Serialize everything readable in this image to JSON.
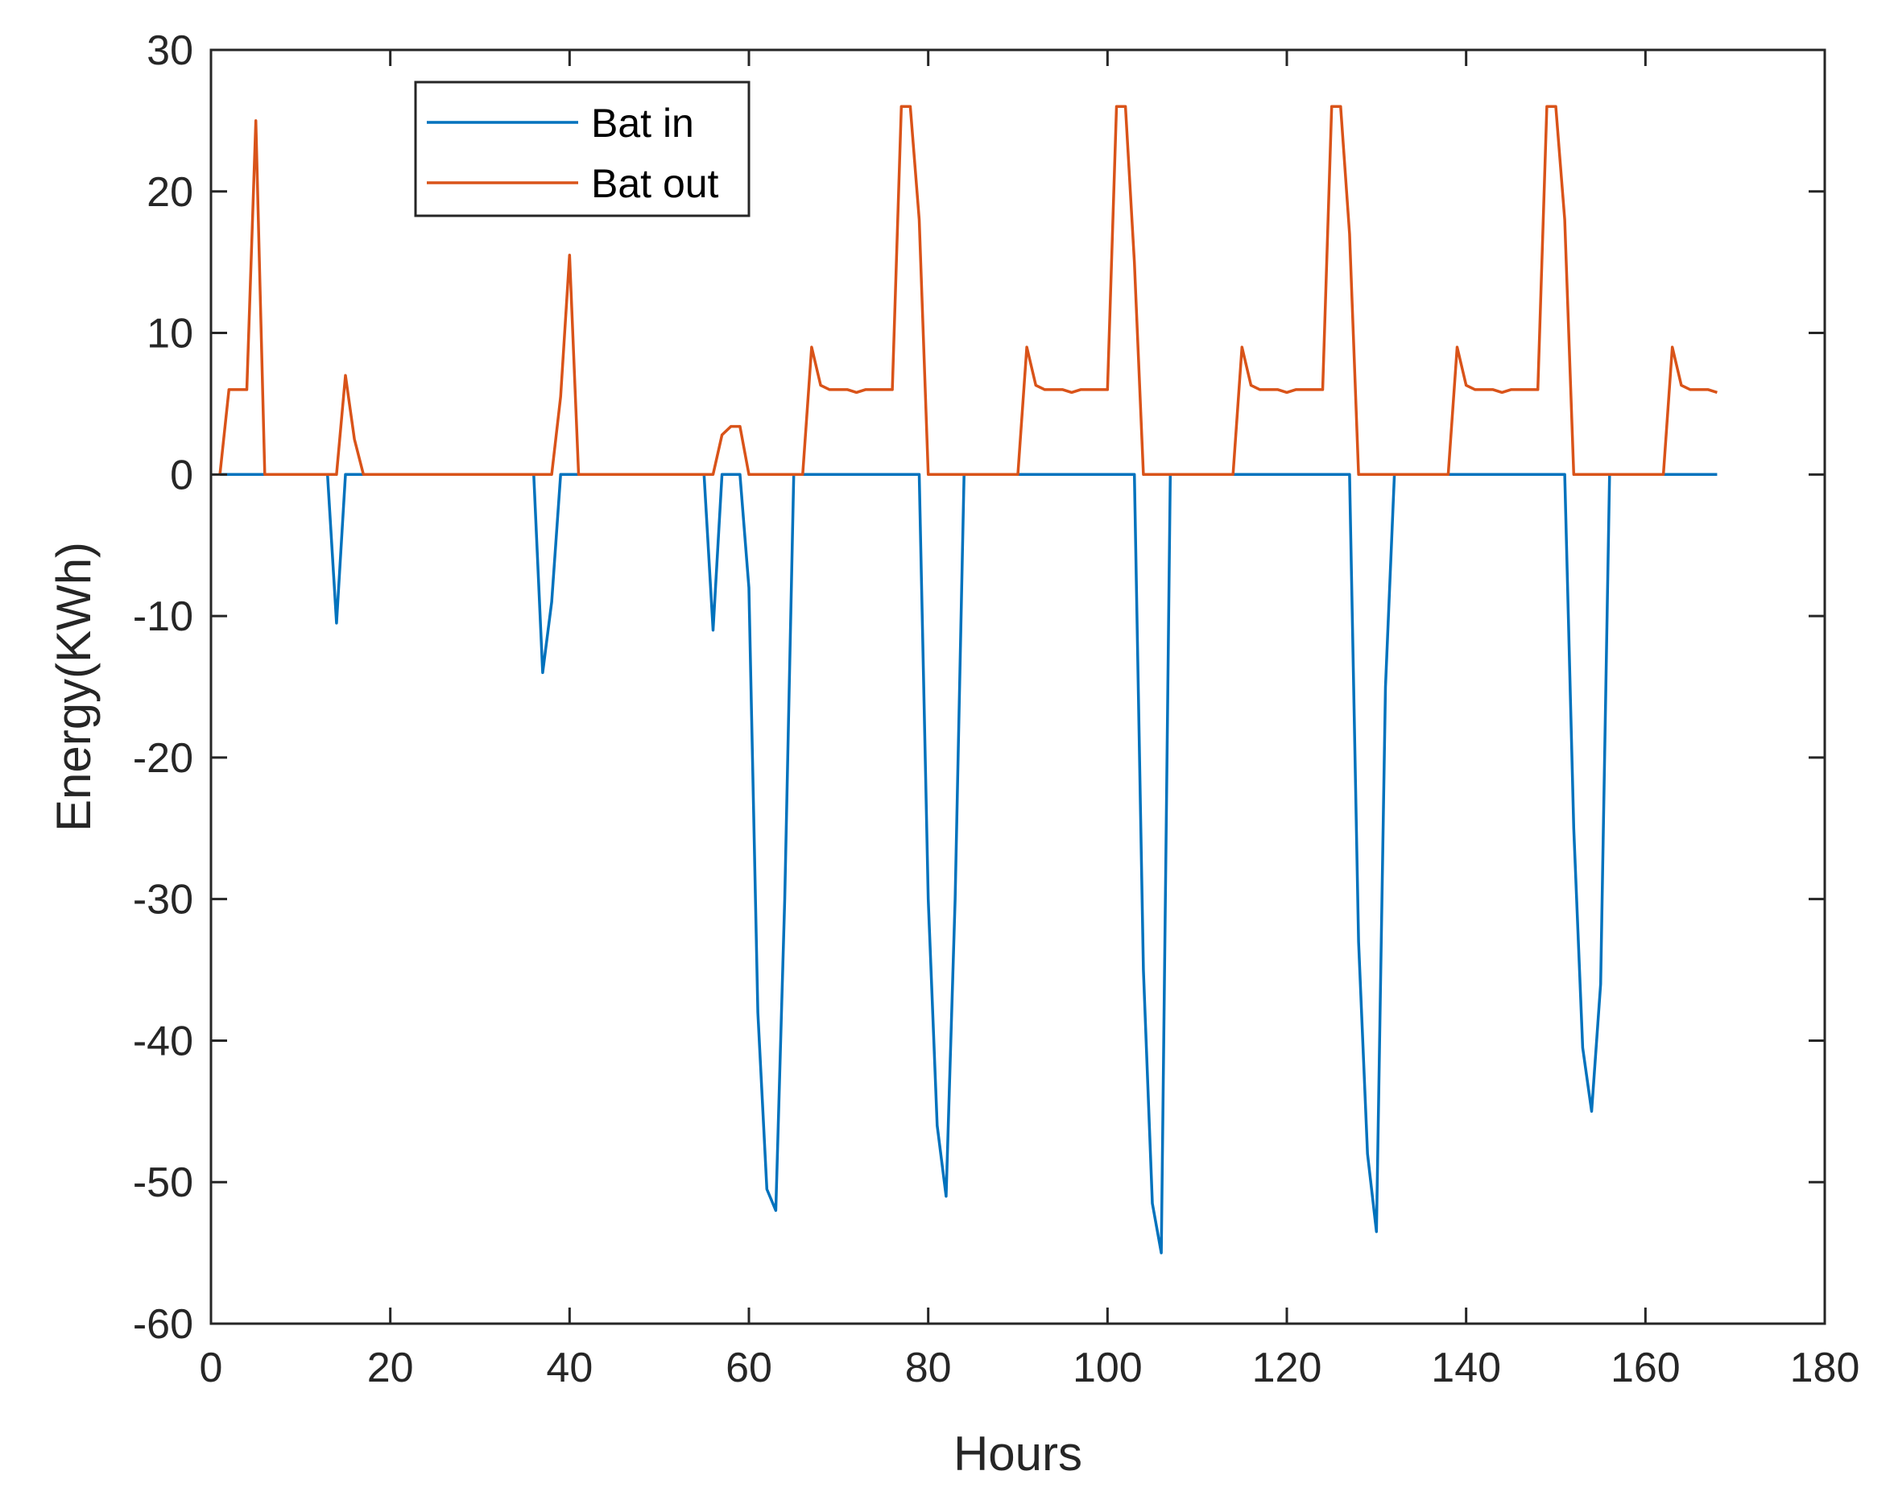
{
  "chart_data": {
    "type": "line",
    "title": "",
    "xlabel": "Hours",
    "ylabel": "Energy(KWh)",
    "xlim": [
      0,
      180
    ],
    "ylim": [
      -60,
      30
    ],
    "xticks": [
      0,
      20,
      40,
      60,
      80,
      100,
      120,
      140,
      160,
      180
    ],
    "yticks": [
      30,
      20,
      10,
      0,
      -10,
      -20,
      -30,
      -40,
      -50,
      -60
    ],
    "xtick_labels": [
      "0",
      "20",
      "40",
      "60",
      "80",
      "100",
      "120",
      "140",
      "160",
      "180"
    ],
    "ytick_labels": [
      "30",
      "20",
      "10",
      "0",
      "-10",
      "-20",
      "-30",
      "-40",
      "-50",
      "-60"
    ],
    "grid": false,
    "legend_position": "top-left",
    "series": [
      {
        "name": "Bat in",
        "color": "#0072BD",
        "x": [
          1,
          13,
          14,
          15,
          16,
          36,
          37,
          38,
          39,
          40,
          55,
          56,
          57,
          58,
          59,
          60,
          61,
          62,
          63,
          64,
          65,
          79,
          80,
          81,
          82,
          83,
          84,
          103,
          104,
          105,
          106,
          107,
          127,
          128,
          129,
          130,
          131,
          132,
          151,
          152,
          153,
          154,
          155,
          156,
          168
        ],
        "y": [
          0,
          0,
          -10.5,
          0,
          0,
          0,
          -14,
          -9,
          0,
          0,
          0,
          -11,
          0,
          0,
          0,
          -8,
          -38,
          -50.5,
          -52,
          -30,
          0,
          0,
          -30,
          -46,
          -51,
          -30,
          0,
          0,
          -35,
          -51.5,
          -55,
          0,
          0,
          -33,
          -48,
          -53.5,
          -15,
          0,
          0,
          -25,
          -40.5,
          -45,
          -36,
          0,
          0
        ]
      },
      {
        "name": "Bat out",
        "color": "#D95319",
        "x": [
          1,
          2,
          3,
          4,
          5,
          6,
          14,
          15,
          16,
          17,
          38,
          39,
          40,
          41,
          56,
          57,
          58,
          59,
          60,
          66,
          67,
          68,
          69,
          70,
          71,
          72,
          73,
          74,
          75,
          76,
          77,
          78,
          79,
          80,
          90,
          91,
          92,
          93,
          94,
          95,
          96,
          97,
          98,
          99,
          100,
          101,
          102,
          103,
          104,
          114,
          115,
          116,
          117,
          118,
          119,
          120,
          121,
          122,
          123,
          124,
          125,
          126,
          127,
          128,
          138,
          139,
          140,
          141,
          142,
          143,
          144,
          145,
          146,
          147,
          148,
          149,
          150,
          151,
          152,
          162,
          163,
          164,
          165,
          166,
          167,
          168
        ],
        "y": [
          0,
          6,
          6,
          6,
          25,
          0,
          0,
          7,
          2.5,
          0,
          0,
          5.5,
          15.5,
          0,
          0,
          2.8,
          3.4,
          3.4,
          0,
          0,
          9,
          6.3,
          6,
          6,
          6,
          5.8,
          6,
          6,
          6,
          6,
          26,
          26,
          18,
          0,
          0,
          9,
          6.3,
          6,
          6,
          6,
          5.8,
          6,
          6,
          6,
          6,
          26,
          26,
          15,
          0,
          0,
          9,
          6.3,
          6,
          6,
          6,
          5.8,
          6,
          6,
          6,
          6,
          26,
          26,
          17,
          0,
          0,
          9,
          6.3,
          6,
          6,
          6,
          5.8,
          6,
          6,
          6,
          6,
          26,
          26,
          18,
          0,
          0,
          9,
          6.3,
          6,
          6,
          6,
          5.8
        ]
      }
    ]
  }
}
